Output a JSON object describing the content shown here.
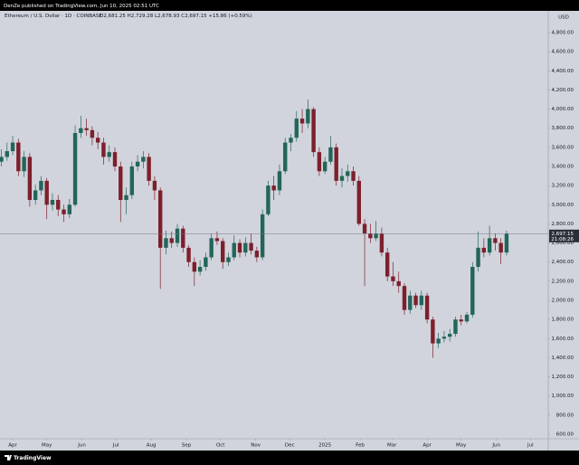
{
  "chart_data": {
    "type": "candlestick",
    "publisher": "DenZe published on TradingView.com, Jun 10, 2025 02:51 UTC",
    "title": "Ethereum / U.S. Dollar · 1D · COINBASE",
    "ohlc_text": "O2,681.25 H2,729.28 L2,678.93 C2,697.15 +15.86 (+0.59%)",
    "currency": "USD",
    "brand": "TradingView",
    "up_color": "#22665a",
    "down_color": "#7e1f2c",
    "xlim": [
      -11.2,
      471.7
    ],
    "ylim": [
      553,
      5027
    ],
    "xticks": [
      {
        "value": 0,
        "label": "Apr"
      },
      {
        "value": 30,
        "label": "May"
      },
      {
        "value": 61,
        "label": "Jun"
      },
      {
        "value": 91,
        "label": "Jul"
      },
      {
        "value": 122,
        "label": "Aug"
      },
      {
        "value": 153,
        "label": "Sep"
      },
      {
        "value": 183,
        "label": "Oct"
      },
      {
        "value": 214,
        "label": "Nov"
      },
      {
        "value": 244,
        "label": "Dec"
      },
      {
        "value": 275,
        "label": "2025"
      },
      {
        "value": 306,
        "label": "Feb"
      },
      {
        "value": 334,
        "label": "Mar"
      },
      {
        "value": 365,
        "label": "Apr"
      },
      {
        "value": 395,
        "label": "May"
      },
      {
        "value": 426,
        "label": "Jun"
      },
      {
        "value": 456,
        "label": "Jul"
      }
    ],
    "yticks": [
      {
        "value": 600,
        "label": "600.00"
      },
      {
        "value": 800,
        "label": "800.00"
      },
      {
        "value": 1000,
        "label": "1,000.00"
      },
      {
        "value": 1200,
        "label": "1,200.00"
      },
      {
        "value": 1400,
        "label": "1,400.00"
      },
      {
        "value": 1600,
        "label": "1,600.00"
      },
      {
        "value": 1800,
        "label": "1,800.00"
      },
      {
        "value": 2000,
        "label": "2,000.00"
      },
      {
        "value": 2200,
        "label": "2,200.00"
      },
      {
        "value": 2400,
        "label": "2,400.00"
      },
      {
        "value": 2600,
        "label": "2,600.00"
      },
      {
        "value": 2800,
        "label": "2,800.00"
      },
      {
        "value": 3000,
        "label": "3,000.00"
      },
      {
        "value": 3200,
        "label": "3,200.00"
      },
      {
        "value": 3400,
        "label": "3,400.00"
      },
      {
        "value": 3600,
        "label": "3,600.00"
      },
      {
        "value": 3800,
        "label": "3,800.00"
      },
      {
        "value": 4000,
        "label": "4,000.00"
      },
      {
        "value": 4200,
        "label": "4,200.00"
      },
      {
        "value": 4400,
        "label": "4,400.00"
      },
      {
        "value": 4600,
        "label": "4,600.00"
      },
      {
        "value": 4800,
        "label": "4,800.00"
      }
    ],
    "last_price": {
      "value": 2697.15,
      "label": "2,697.15"
    },
    "countdown": "21:08:26",
    "x": [
      -10,
      -5,
      0,
      5,
      10,
      15,
      20,
      25,
      30,
      35,
      40,
      45,
      50,
      55,
      60,
      65,
      70,
      75,
      80,
      85,
      90,
      95,
      100,
      105,
      110,
      115,
      120,
      125,
      130,
      135,
      140,
      145,
      150,
      155,
      160,
      165,
      170,
      175,
      180,
      185,
      190,
      195,
      200,
      205,
      210,
      215,
      220,
      225,
      230,
      235,
      240,
      245,
      250,
      255,
      260,
      265,
      270,
      275,
      280,
      285,
      290,
      295,
      300,
      305,
      310,
      315,
      320,
      325,
      330,
      335,
      340,
      345,
      350,
      355,
      360,
      365,
      370,
      375,
      380,
      385,
      390,
      395,
      400,
      405,
      410,
      415,
      420,
      425,
      430,
      435
    ],
    "candles": [
      [
        3450,
        3580,
        3400,
        3500
      ],
      [
        3500,
        3650,
        3460,
        3560
      ],
      [
        3560,
        3720,
        3520,
        3650
      ],
      [
        3650,
        3690,
        3300,
        3350
      ],
      [
        3350,
        3560,
        3290,
        3500
      ],
      [
        3500,
        3540,
        2980,
        3050
      ],
      [
        3050,
        3210,
        3000,
        3150
      ],
      [
        3150,
        3300,
        3100,
        3250
      ],
      [
        3250,
        3280,
        2850,
        3000
      ],
      [
        3000,
        3120,
        2940,
        3050
      ],
      [
        3050,
        3100,
        2880,
        2950
      ],
      [
        2950,
        3000,
        2820,
        2900
      ],
      [
        2900,
        3060,
        2860,
        3000
      ],
      [
        3000,
        3830,
        2980,
        3750
      ],
      [
        3750,
        3930,
        3700,
        3800
      ],
      [
        3800,
        3900,
        3720,
        3780
      ],
      [
        3780,
        3820,
        3620,
        3700
      ],
      [
        3700,
        3760,
        3580,
        3650
      ],
      [
        3650,
        3700,
        3420,
        3500
      ],
      [
        3500,
        3620,
        3450,
        3550
      ],
      [
        3550,
        3600,
        3350,
        3400
      ],
      [
        3400,
        3450,
        2820,
        3050
      ],
      [
        3050,
        3180,
        2900,
        3100
      ],
      [
        3100,
        3450,
        3060,
        3400
      ],
      [
        3400,
        3520,
        3350,
        3450
      ],
      [
        3450,
        3560,
        3380,
        3500
      ],
      [
        3500,
        3540,
        3200,
        3250
      ],
      [
        3250,
        3300,
        3050,
        3150
      ],
      [
        3150,
        3180,
        2120,
        2550
      ],
      [
        2550,
        2730,
        2480,
        2650
      ],
      [
        2650,
        2720,
        2550,
        2600
      ],
      [
        2600,
        2800,
        2560,
        2750
      ],
      [
        2750,
        2780,
        2500,
        2550
      ],
      [
        2550,
        2580,
        2350,
        2400
      ],
      [
        2400,
        2450,
        2150,
        2300
      ],
      [
        2300,
        2420,
        2260,
        2350
      ],
      [
        2350,
        2500,
        2310,
        2450
      ],
      [
        2450,
        2700,
        2420,
        2650
      ],
      [
        2650,
        2720,
        2580,
        2620
      ],
      [
        2620,
        2650,
        2330,
        2400
      ],
      [
        2400,
        2500,
        2360,
        2450
      ],
      [
        2450,
        2680,
        2420,
        2600
      ],
      [
        2600,
        2640,
        2450,
        2500
      ],
      [
        2500,
        2660,
        2460,
        2600
      ],
      [
        2600,
        2700,
        2480,
        2520
      ],
      [
        2520,
        2560,
        2400,
        2450
      ],
      [
        2450,
        2950,
        2420,
        2900
      ],
      [
        2900,
        3250,
        2880,
        3200
      ],
      [
        3200,
        3300,
        3050,
        3150
      ],
      [
        3150,
        3420,
        3100,
        3350
      ],
      [
        3350,
        3700,
        3320,
        3650
      ],
      [
        3650,
        3740,
        3560,
        3700
      ],
      [
        3700,
        3980,
        3660,
        3900
      ],
      [
        3900,
        4000,
        3750,
        3850
      ],
      [
        3850,
        4100,
        3800,
        4000
      ],
      [
        4000,
        4020,
        3500,
        3550
      ],
      [
        3550,
        3600,
        3300,
        3350
      ],
      [
        3350,
        3500,
        3320,
        3450
      ],
      [
        3450,
        3720,
        3420,
        3600
      ],
      [
        3600,
        3640,
        3200,
        3250
      ],
      [
        3250,
        3380,
        3180,
        3300
      ],
      [
        3300,
        3420,
        3240,
        3350
      ],
      [
        3350,
        3400,
        3200,
        3250
      ],
      [
        3250,
        3300,
        2780,
        2800
      ],
      [
        2800,
        2850,
        2150,
        2700
      ],
      [
        2700,
        2800,
        2600,
        2650
      ],
      [
        2650,
        2830,
        2620,
        2700
      ],
      [
        2700,
        2760,
        2460,
        2500
      ],
      [
        2500,
        2550,
        2200,
        2250
      ],
      [
        2250,
        2400,
        2150,
        2200
      ],
      [
        2200,
        2300,
        2080,
        2150
      ],
      [
        2150,
        2180,
        1850,
        1900
      ],
      [
        1900,
        2100,
        1860,
        2050
      ],
      [
        2050,
        2080,
        1920,
        1950
      ],
      [
        1950,
        2100,
        1900,
        2050
      ],
      [
        2050,
        2080,
        1760,
        1800
      ],
      [
        1800,
        1830,
        1400,
        1550
      ],
      [
        1550,
        1660,
        1500,
        1600
      ],
      [
        1600,
        1680,
        1560,
        1620
      ],
      [
        1620,
        1700,
        1570,
        1650
      ],
      [
        1650,
        1830,
        1620,
        1800
      ],
      [
        1800,
        1850,
        1740,
        1780
      ],
      [
        1780,
        1880,
        1760,
        1850
      ],
      [
        1850,
        2400,
        1820,
        2350
      ],
      [
        2350,
        2720,
        2300,
        2550
      ],
      [
        2550,
        2650,
        2450,
        2500
      ],
      [
        2500,
        2780,
        2470,
        2650
      ],
      [
        2650,
        2700,
        2520,
        2600
      ],
      [
        2600,
        2650,
        2380,
        2500
      ],
      [
        2500,
        2730,
        2470,
        2697.15
      ]
    ]
  }
}
